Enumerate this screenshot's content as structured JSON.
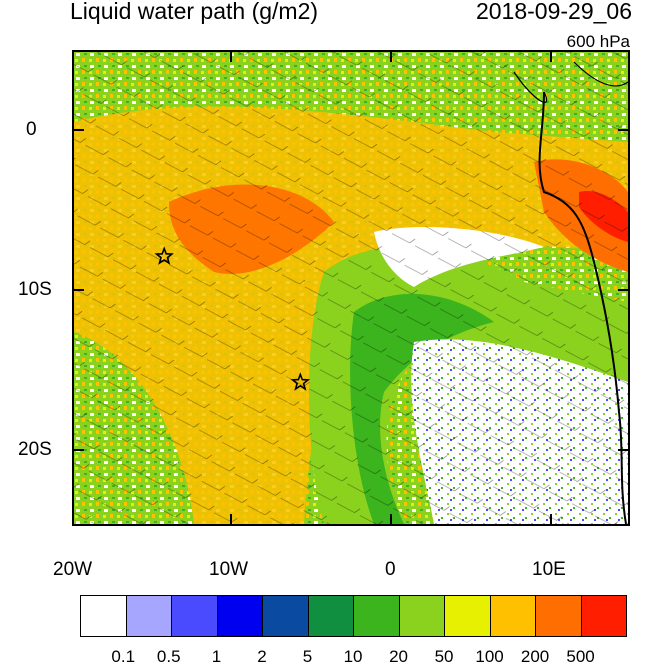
{
  "title": "Liquid water path (g/m2)",
  "datetime": "2018-09-29_06",
  "level": "600 hPa",
  "y_ticks": [
    "0",
    "10S",
    "20S"
  ],
  "x_ticks": [
    "20W",
    "10W",
    "0",
    "10E"
  ],
  "colorbar": {
    "colors": [
      "#ffffff",
      "#a6a6ff",
      "#4a4aff",
      "#0000f0",
      "#0a4aa0",
      "#0f8f3f",
      "#3cb41e",
      "#8ad21e",
      "#e6f000",
      "#ffc000",
      "#ff6e00",
      "#ff1e00"
    ],
    "labels": [
      "0.1",
      "0.5",
      "1",
      "2",
      "5",
      "10",
      "20",
      "50",
      "100",
      "200",
      "500"
    ]
  },
  "markers": [
    {
      "name": "star-marker",
      "lon": -14.3,
      "lat": -8.0
    },
    {
      "name": "star-marker",
      "lon": -5.7,
      "lat": -16.0
    }
  ]
}
